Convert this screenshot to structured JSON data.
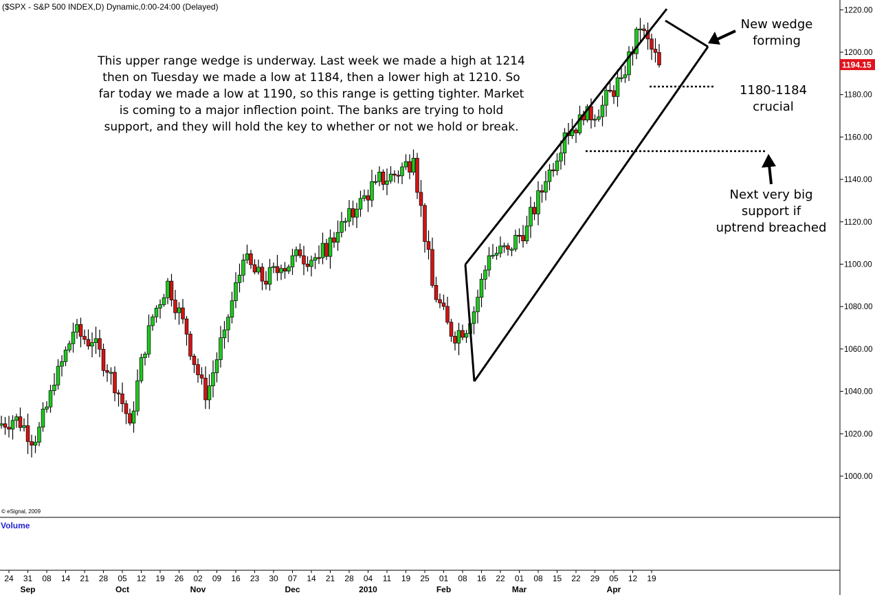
{
  "header": {
    "title": "($SPX - S&P 500 INDEX,D) Dynamic,0:00-24:00 (Delayed)"
  },
  "copyright": "© eSignal, 2009",
  "volume_label": "Volume",
  "last_price": "1194.15",
  "commentary": [
    "This upper range wedge is underway.  Last week we made a high at 1214",
    "then on Tuesday we made a low at 1184, then a lower high at 1210.  So",
    "far today we made a low at 1190, so this range is getting tighter. Market",
    "is coming to a major inflection point.  The banks are trying to hold",
    "support, and they will hold the key to whether or not we hold or break."
  ],
  "annotations": {
    "wedge": [
      "New wedge",
      "forming"
    ],
    "crucial": [
      "1180-1184",
      "crucial"
    ],
    "support": [
      "Next very big",
      "support if",
      "uptrend breached"
    ]
  },
  "colors": {
    "up": "#1ec81e",
    "down": "#d21414",
    "wick": "#000000",
    "price_tag": "#e0141e",
    "volume_label": "#1f1fcf"
  },
  "chart_data": {
    "type": "candlestick",
    "title": "($SPX - S&P 500 INDEX,D) Dynamic,0:00-24:00 (Delayed)",
    "ylim": [
      980,
      1220
    ],
    "yticks": [
      1000,
      1020,
      1040,
      1060,
      1080,
      1100,
      1120,
      1140,
      1160,
      1180,
      1200,
      1220
    ],
    "ytick_labels": [
      "1000.00",
      "1020.00",
      "1040.00",
      "1060.00",
      "1080.00",
      "1100.00",
      "1120.00",
      "1140.00",
      "1160.00",
      "1180.00",
      "1200.00",
      "1220.00"
    ],
    "x_ticks": [
      "24",
      "31",
      "08",
      "14",
      "21",
      "28",
      "05",
      "12",
      "19",
      "26",
      "02",
      "09",
      "16",
      "23",
      "30",
      "07",
      "14",
      "21",
      "28",
      "04",
      "11",
      "19",
      "25",
      "01",
      "08",
      "16",
      "22",
      "01",
      "08",
      "15",
      "22",
      "29",
      "05",
      "12",
      "19"
    ],
    "x_months": [
      "Sep",
      "Oct",
      "Nov",
      "Dec",
      "2010",
      "Feb",
      "Mar",
      "Apr"
    ],
    "last_value": 1194.15,
    "series": [
      {
        "dates": [
          "24 Aug",
          "31 Aug",
          "08 Sep",
          "14 Sep",
          "21 Sep",
          "28 Sep",
          "05 Oct",
          "12 Oct",
          "19 Oct",
          "26 Oct",
          "02 Nov",
          "09 Nov",
          "16 Nov",
          "23 Nov",
          "30 Nov",
          "07 Dec",
          "14 Dec",
          "21 Dec",
          "28 Dec",
          "04 Jan",
          "11 Jan",
          "19 Jan",
          "25 Jan",
          "01 Feb",
          "08 Feb",
          "16 Feb",
          "22 Feb",
          "01 Mar",
          "08 Mar",
          "15 Mar",
          "22 Mar",
          "29 Mar",
          "05 Apr",
          "12 Apr",
          "19 Apr"
        ],
        "closes": [
          1028,
          1016,
          1043,
          1068,
          1063,
          1049,
          1025,
          1071,
          1092,
          1067,
          1036,
          1069,
          1102,
          1092,
          1098,
          1104,
          1103,
          1115,
          1126,
          1139,
          1142,
          1150,
          1090,
          1066,
          1072,
          1104,
          1107,
          1118,
          1139,
          1162,
          1168,
          1175,
          1188,
          1211,
          1194
        ]
      }
    ]
  }
}
